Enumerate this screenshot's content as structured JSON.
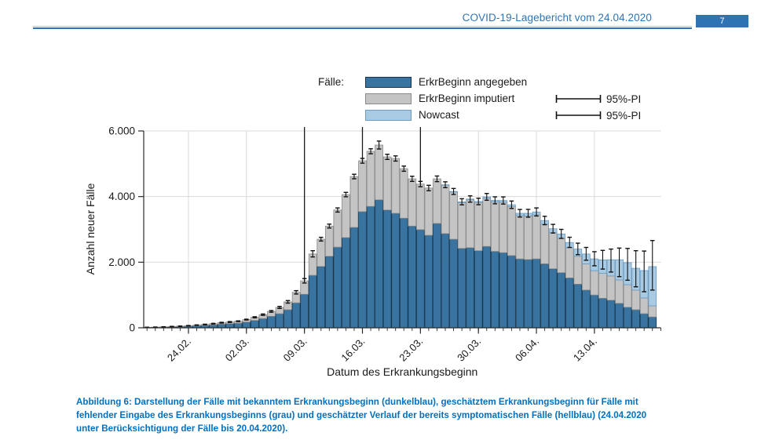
{
  "page": {
    "header": {
      "title": "COVID-19-Lagebericht vom 24.04.2020",
      "page_number": "7"
    },
    "caption": {
      "lines": [
        "Abbildung 6: Darstellung der Fälle mit bekanntem Erkrankungsbeginn (dunkelblau), geschätztem Erkrankungsbeginn für Fälle mit",
        "fehlender Eingabe des Erkrankungsbeginns (grau) und geschätzter Verlauf der bereits symptomatischen Fälle (hellblau) (24.04.2020",
        "unter Berücksichtigung der Fälle bis 20.04.2020)."
      ]
    }
  },
  "colors": {
    "accent_blue": "#2e74b5",
    "caption_blue": "#0070c0",
    "grid": "#d9d9d9",
    "marker_line": "#1a1a1a",
    "error_bar": "#111111"
  },
  "legend": {
    "title": "Fälle:",
    "items": [
      {
        "label": "ErkrBeginn angegeben"
      },
      {
        "label": "ErkrBeginn imputiert"
      },
      {
        "label": "Nowcast"
      }
    ],
    "pi_label": "95%-PI"
  },
  "chart_data": {
    "type": "stacked_bar_with_error",
    "title": "",
    "xlabel": "Datum des Erkrankungsbeginn",
    "ylabel": "Anzahl neuer Fälle",
    "ylim": [
      0,
      6000
    ],
    "yticks": [
      0,
      2000,
      4000,
      6000
    ],
    "ytick_labels": [
      "0",
      "2.000",
      "4.000",
      "6.000"
    ],
    "grid": true,
    "legend_position": "top",
    "dates": [
      "19.02.",
      "20.02.",
      "21.02.",
      "22.02.",
      "23.02.",
      "24.02.",
      "25.02.",
      "26.02.",
      "27.02.",
      "28.02.",
      "29.02.",
      "01.03.",
      "02.03.",
      "03.03.",
      "04.03.",
      "05.03.",
      "06.03.",
      "07.03.",
      "08.03.",
      "09.03.",
      "10.03.",
      "11.03.",
      "12.03.",
      "13.03.",
      "14.03.",
      "15.03.",
      "16.03.",
      "17.03.",
      "18.03.",
      "19.03.",
      "20.03.",
      "21.03.",
      "22.03.",
      "23.03.",
      "24.03.",
      "25.03.",
      "26.03.",
      "27.03.",
      "28.03.",
      "29.03.",
      "30.03.",
      "31.03.",
      "01.04.",
      "02.04.",
      "03.04.",
      "04.04.",
      "05.04.",
      "06.04.",
      "07.04.",
      "08.04.",
      "09.04.",
      "10.04.",
      "11.04.",
      "12.04.",
      "13.04.",
      "14.04.",
      "15.04.",
      "16.04.",
      "17.04.",
      "18.04.",
      "19.04.",
      "20.04."
    ],
    "xticks": [
      {
        "label": "24.02.",
        "day": 5
      },
      {
        "label": "02.03.",
        "day": 12
      },
      {
        "label": "09.03.",
        "day": 19
      },
      {
        "label": "16.03.",
        "day": 26
      },
      {
        "label": "23.03.",
        "day": 33
      },
      {
        "label": "30.03.",
        "day": 40
      },
      {
        "label": "06.04.",
        "day": 47
      },
      {
        "label": "13.04.",
        "day": 54
      }
    ],
    "marker_days": [
      19,
      26,
      33
    ],
    "series": [
      {
        "name": "ErkrBeginn angegeben",
        "color": "#38749f",
        "border": "#16364f",
        "values": [
          11,
          14,
          20,
          27,
          34,
          44,
          57,
          71,
          89,
          110,
          125,
          140,
          175,
          225,
          280,
          350,
          430,
          550,
          760,
          1020,
          1600,
          1870,
          2180,
          2460,
          2750,
          3060,
          3540,
          3700,
          3900,
          3590,
          3490,
          3340,
          3100,
          2990,
          2820,
          3180,
          2870,
          2700,
          2420,
          2440,
          2350,
          2480,
          2330,
          2290,
          2200,
          2100,
          2080,
          2100,
          1950,
          1800,
          1680,
          1520,
          1330,
          1150,
          1000,
          900,
          840,
          745,
          625,
          550,
          430,
          330
        ]
      },
      {
        "name": "ErkrBeginn imputiert",
        "color": "#c4c4c4",
        "border": "#8a8a8a",
        "values": [
          4,
          6,
          8,
          11,
          14,
          18,
          23,
          29,
          36,
          45,
          50,
          60,
          75,
          95,
          120,
          150,
          190,
          240,
          320,
          410,
          650,
          830,
          920,
          1130,
          1310,
          1550,
          1550,
          1680,
          1670,
          1620,
          1670,
          1510,
          1440,
          1390,
          1440,
          1360,
          1480,
          1440,
          1400,
          1460,
          1470,
          1470,
          1510,
          1540,
          1490,
          1320,
          1330,
          1340,
          1210,
          1100,
          1050,
          920,
          850,
          800,
          740,
          760,
          740,
          715,
          690,
          600,
          480,
          340
        ]
      },
      {
        "name": "Nowcast",
        "color": "#a8cae3",
        "border": "#6d9bc0",
        "values": [
          0,
          0,
          0,
          0,
          0,
          0,
          0,
          0,
          0,
          0,
          0,
          0,
          0,
          0,
          0,
          0,
          0,
          0,
          0,
          0,
          0,
          0,
          0,
          0,
          0,
          0,
          0,
          0,
          0,
          0,
          0,
          0,
          0,
          0,
          0,
          0,
          10,
          15,
          20,
          25,
          30,
          40,
          45,
          50,
          60,
          70,
          80,
          90,
          110,
          120,
          130,
          160,
          220,
          300,
          360,
          410,
          495,
          615,
          670,
          665,
          835,
          1195
        ]
      }
    ],
    "error_lo": [
      13,
      18,
      25,
      34,
      43,
      56,
      73,
      92,
      116,
      144,
      163,
      190,
      238,
      304,
      380,
      475,
      590,
      752,
      1030,
      1365,
      2160,
      2645,
      3042,
      3528,
      3995,
      4542,
      5018,
      5305,
      5450,
      5132,
      5082,
      4772,
      4462,
      4300,
      4178,
      4455,
      4272,
      4065,
      3748,
      3830,
      3752,
      3888,
      3780,
      3772,
      3638,
      3375,
      3372,
      3408,
      3143,
      2889,
      2725,
      2450,
      2230,
      2060,
      1890,
      1790,
      1700,
      1560,
      1450,
      1250,
      1100,
      1150
    ],
    "error_hi": [
      18,
      24,
      33,
      44,
      55,
      70,
      89,
      110,
      136,
      168,
      190,
      211,
      263,
      337,
      421,
      526,
      652,
      830,
      1133,
      1500,
      2350,
      2758,
      3160,
      3654,
      4128,
      4680,
      5164,
      5457,
      5692,
      5290,
      5240,
      4930,
      4620,
      4462,
      4344,
      4627,
      4450,
      4247,
      3934,
      4022,
      3950,
      4094,
      3992,
      3990,
      3864,
      3607,
      3610,
      3654,
      3399,
      3153,
      3000,
      2760,
      2580,
      2450,
      2320,
      2360,
      2400,
      2430,
      2420,
      2350,
      2340,
      2660
    ]
  }
}
